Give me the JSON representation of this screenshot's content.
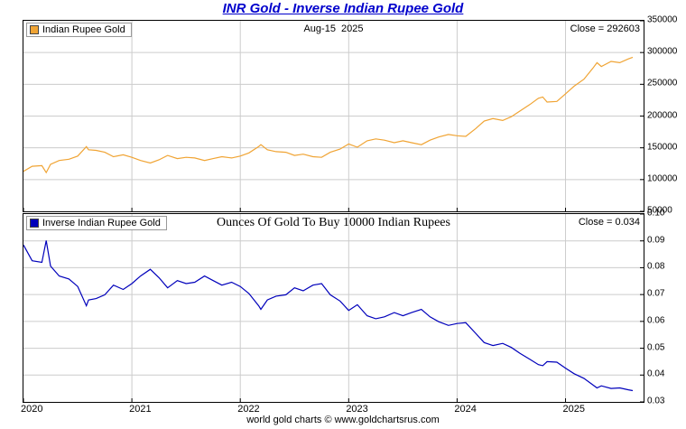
{
  "title": "INR Gold - Inverse Indian Rupee Gold",
  "footer": "world gold charts © www.goldchartsrus.com",
  "colors": {
    "title": "#0000cc",
    "grid": "#cccccc",
    "axis": "#000000",
    "gold_line": "#f0a434",
    "blue_line": "#0000bb"
  },
  "x_axis": {
    "range": [
      2020,
      2025.72
    ],
    "ticks": [
      2020,
      2021,
      2022,
      2023,
      2024,
      2025
    ],
    "labels": [
      "2020",
      "2021",
      "2022",
      "2023",
      "2024",
      "2025"
    ]
  },
  "chart_data": [
    {
      "type": "line",
      "title": "Indian Rupee Gold",
      "series_id": "gold-line",
      "annotation": "Aug-15  2025",
      "close_label": "Close = 292603",
      "close_value": 292603,
      "line_color": "#f0a434",
      "legend_position": "top-left",
      "grid": true,
      "ylim": [
        50000,
        350000
      ],
      "yticks": [
        50000,
        100000,
        150000,
        200000,
        250000,
        300000,
        350000
      ],
      "ytick_labels": [
        "50000",
        "100000",
        "150000",
        "200000",
        "250000",
        "300000",
        "350000"
      ],
      "x": [
        2020.0,
        2020.08,
        2020.17,
        2020.21,
        2020.25,
        2020.33,
        2020.42,
        2020.5,
        2020.58,
        2020.6,
        2020.67,
        2020.75,
        2020.83,
        2020.92,
        2021.0,
        2021.08,
        2021.17,
        2021.25,
        2021.33,
        2021.42,
        2021.5,
        2021.58,
        2021.67,
        2021.75,
        2021.83,
        2021.92,
        2022.0,
        2022.08,
        2022.17,
        2022.19,
        2022.25,
        2022.33,
        2022.42,
        2022.5,
        2022.58,
        2022.67,
        2022.75,
        2022.83,
        2022.92,
        2023.0,
        2023.08,
        2023.17,
        2023.25,
        2023.33,
        2023.42,
        2023.5,
        2023.58,
        2023.67,
        2023.75,
        2023.83,
        2023.92,
        2024.0,
        2024.08,
        2024.17,
        2024.25,
        2024.33,
        2024.42,
        2024.5,
        2024.58,
        2024.67,
        2024.75,
        2024.79,
        2024.83,
        2024.92,
        2025.0,
        2025.08,
        2025.17,
        2025.25,
        2025.29,
        2025.33,
        2025.42,
        2025.5,
        2025.58,
        2025.62
      ],
      "values": [
        113000,
        121000,
        122000,
        111000,
        124000,
        130000,
        132000,
        137000,
        152000,
        147000,
        146000,
        143000,
        136000,
        139000,
        135000,
        130000,
        126000,
        131000,
        138000,
        133000,
        135000,
        134000,
        130000,
        133000,
        136000,
        134000,
        137000,
        142000,
        152000,
        155000,
        147000,
        144000,
        143000,
        138000,
        140000,
        136000,
        135000,
        143000,
        148000,
        156000,
        151000,
        161000,
        164000,
        162000,
        158000,
        161000,
        158000,
        155000,
        162000,
        167000,
        171000,
        169000,
        168000,
        180000,
        192000,
        196000,
        193000,
        199000,
        208000,
        218000,
        228000,
        230000,
        222000,
        223000,
        235000,
        247000,
        258000,
        275000,
        284000,
        278000,
        286000,
        284000,
        290000,
        292603
      ]
    },
    {
      "type": "line",
      "title": "Inverse Indian Rupee Gold",
      "series_id": "inverse-line",
      "annotation": "Ounces Of Gold To Buy 10000 Indian Rupees",
      "close_label": "Close = 0.034",
      "close_value": 0.034,
      "line_color": "#0000bb",
      "legend_position": "top-left",
      "grid": true,
      "ylim": [
        0.03,
        0.1
      ],
      "yticks": [
        0.03,
        0.04,
        0.05,
        0.06,
        0.07,
        0.08,
        0.09,
        0.1
      ],
      "ytick_labels": [
        "0.03",
        "0.04",
        "0.05",
        "0.06",
        "0.07",
        "0.08",
        "0.09",
        "0.10"
      ],
      "x": [
        2020.0,
        2020.08,
        2020.17,
        2020.21,
        2020.25,
        2020.33,
        2020.42,
        2020.5,
        2020.58,
        2020.6,
        2020.67,
        2020.75,
        2020.83,
        2020.92,
        2021.0,
        2021.08,
        2021.17,
        2021.25,
        2021.33,
        2021.42,
        2021.5,
        2021.58,
        2021.67,
        2021.75,
        2021.83,
        2021.92,
        2022.0,
        2022.08,
        2022.17,
        2022.19,
        2022.25,
        2022.33,
        2022.42,
        2022.5,
        2022.58,
        2022.67,
        2022.75,
        2022.83,
        2022.92,
        2023.0,
        2023.08,
        2023.17,
        2023.25,
        2023.33,
        2023.42,
        2023.5,
        2023.58,
        2023.67,
        2023.75,
        2023.83,
        2023.92,
        2024.0,
        2024.08,
        2024.17,
        2024.25,
        2024.33,
        2024.42,
        2024.5,
        2024.58,
        2024.67,
        2024.75,
        2024.79,
        2024.83,
        2024.92,
        2025.0,
        2025.08,
        2025.17,
        2025.25,
        2025.29,
        2025.33,
        2025.42,
        2025.5,
        2025.58,
        2025.62
      ],
      "values": [
        0.0885,
        0.0826,
        0.082,
        0.0901,
        0.0806,
        0.0769,
        0.0758,
        0.073,
        0.0658,
        0.068,
        0.0685,
        0.0699,
        0.0735,
        0.0719,
        0.0741,
        0.0769,
        0.0794,
        0.0763,
        0.0725,
        0.0752,
        0.0741,
        0.0746,
        0.0769,
        0.0752,
        0.0735,
        0.0746,
        0.073,
        0.0704,
        0.0658,
        0.0645,
        0.068,
        0.0694,
        0.0699,
        0.0725,
        0.0714,
        0.0735,
        0.0741,
        0.0699,
        0.0676,
        0.0641,
        0.0662,
        0.0621,
        0.061,
        0.0617,
        0.0633,
        0.0621,
        0.0633,
        0.0645,
        0.0617,
        0.0599,
        0.0585,
        0.0592,
        0.0595,
        0.0556,
        0.0521,
        0.051,
        0.0518,
        0.0503,
        0.0481,
        0.0459,
        0.0439,
        0.0435,
        0.045,
        0.0448,
        0.0426,
        0.0405,
        0.0388,
        0.0364,
        0.0352,
        0.036,
        0.035,
        0.0352,
        0.0345,
        0.0342
      ]
    }
  ]
}
